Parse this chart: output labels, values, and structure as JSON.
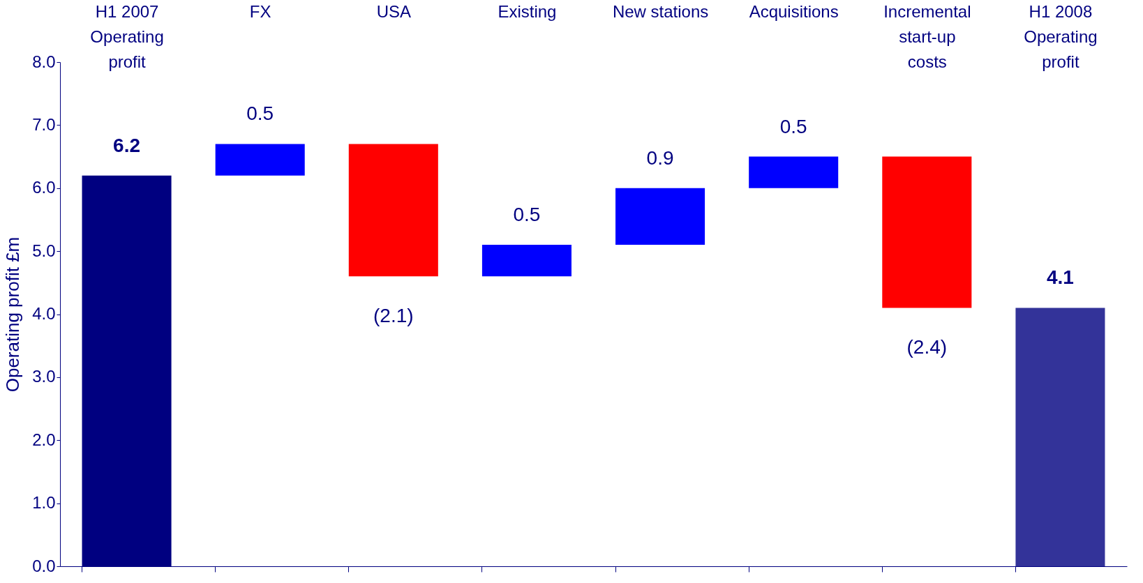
{
  "chart_data": {
    "type": "bar",
    "ylabel": "Operating profit £m",
    "categories": [
      "H1 2007 Operating profit",
      "FX",
      "USA",
      "Existing",
      "New stations",
      "Acquisitions",
      "Incremental start-up costs",
      "H1 2008 Operating profit"
    ],
    "values": [
      6.2,
      0.5,
      -2.1,
      0.5,
      0.9,
      0.5,
      -2.4,
      4.1
    ],
    "base": [
      0,
      6.2,
      6.7,
      4.6,
      5.1,
      6.0,
      6.5,
      0
    ],
    "colors": [
      "#000080",
      "#0000ff",
      "#ff0000",
      "#0000ff",
      "#0000ff",
      "#0000ff",
      "#ff0000",
      "#333399"
    ],
    "value_labels": [
      "6.2",
      "0.5",
      "(2.1)",
      "0.5",
      "0.9",
      "0.5",
      "(2.4)",
      "4.1"
    ],
    "ylim": [
      0,
      8
    ],
    "yticks": [
      {
        "value": 0,
        "label": "0.0"
      },
      {
        "value": 1,
        "label": "1.0"
      },
      {
        "value": 2,
        "label": "2.0"
      },
      {
        "value": 3,
        "label": "3.0"
      },
      {
        "value": 4,
        "label": "4.0"
      },
      {
        "value": 5,
        "label": "5.0"
      },
      {
        "value": 6,
        "label": "6.0"
      },
      {
        "value": 7,
        "label": "7.0"
      },
      {
        "value": 8,
        "label": "8.0"
      }
    ],
    "grid": false
  }
}
